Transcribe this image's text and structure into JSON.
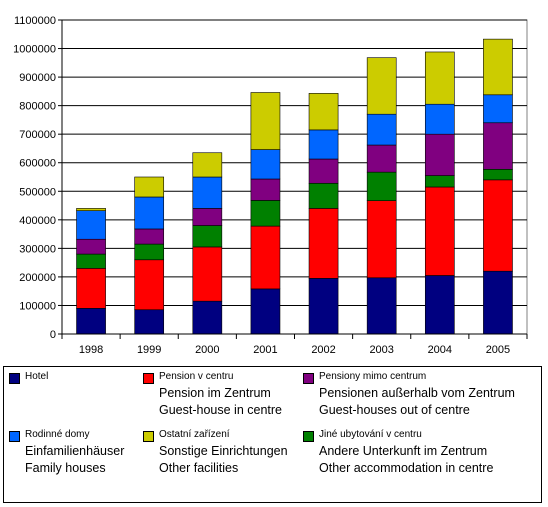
{
  "chart_data": {
    "type": "bar",
    "stacked": true,
    "categories": [
      "1998",
      "1999",
      "2000",
      "2001",
      "2002",
      "2003",
      "2004",
      "2005"
    ],
    "ylim": [
      0,
      1100000
    ],
    "ytick_step": 100000,
    "yticks": [
      "0",
      "100000",
      "200000",
      "300000",
      "400000",
      "500000",
      "600000",
      "700000",
      "800000",
      "900000",
      "1000000",
      "1100000"
    ],
    "grid": true,
    "legend_position": "bottom",
    "series": [
      {
        "name": "Hotel",
        "color": "#000080",
        "values": [
          90000,
          85000,
          115000,
          158000,
          195000,
          197000,
          205000,
          220000
        ]
      },
      {
        "name": "Pension v centru",
        "color": "#ff0000",
        "values": [
          140000,
          175000,
          190000,
          220000,
          245000,
          270000,
          310000,
          320000
        ]
      },
      {
        "name": "Jiné ubytování v centru",
        "color": "#008000",
        "values": [
          50000,
          55000,
          75000,
          90000,
          88000,
          100000,
          40000,
          37000
        ]
      },
      {
        "name": "Pensiony mimo centrum",
        "color": "#800080",
        "values": [
          52000,
          53000,
          60000,
          75000,
          85000,
          95000,
          145000,
          163000
        ]
      },
      {
        "name": "Rodinné domy",
        "color": "#0066ff",
        "values": [
          100000,
          112000,
          110000,
          103000,
          102000,
          108000,
          105000,
          98000
        ]
      },
      {
        "name": "Ostatní zařízení",
        "color": "#cccc00",
        "values": [
          8000,
          70000,
          85000,
          200000,
          128000,
          198000,
          183000,
          195000
        ]
      }
    ]
  },
  "legend": {
    "entries": [
      {
        "key": "hotel",
        "color": "#000080",
        "primary": "Hotel",
        "sub": []
      },
      {
        "key": "pension-centre",
        "color": "#ff0000",
        "primary": "Pension v centru",
        "sub": [
          "Pension im Zentrum",
          "Guest-house in centre"
        ]
      },
      {
        "key": "pensions-outside",
        "color": "#800080",
        "primary": "Pensiony mimo centrum",
        "sub": [
          "Pensionen außerhalb vom Zentrum",
          "Guest-houses out of centre"
        ]
      },
      {
        "key": "family-houses",
        "color": "#0066ff",
        "primary": "Rodinné domy",
        "sub": [
          "Einfamilienhäuser",
          "Family houses"
        ]
      },
      {
        "key": "other-facilities",
        "color": "#cccc00",
        "primary": "Ostatní zařízení",
        "sub": [
          "Sonstige Einrichtungen",
          "Other facilities"
        ]
      },
      {
        "key": "other-accommodation",
        "color": "#008000",
        "primary": "Jiné ubytování v centru",
        "sub": [
          "Andere Unterkunft  im Zentrum",
          "Other accommodation in centre"
        ]
      }
    ]
  }
}
